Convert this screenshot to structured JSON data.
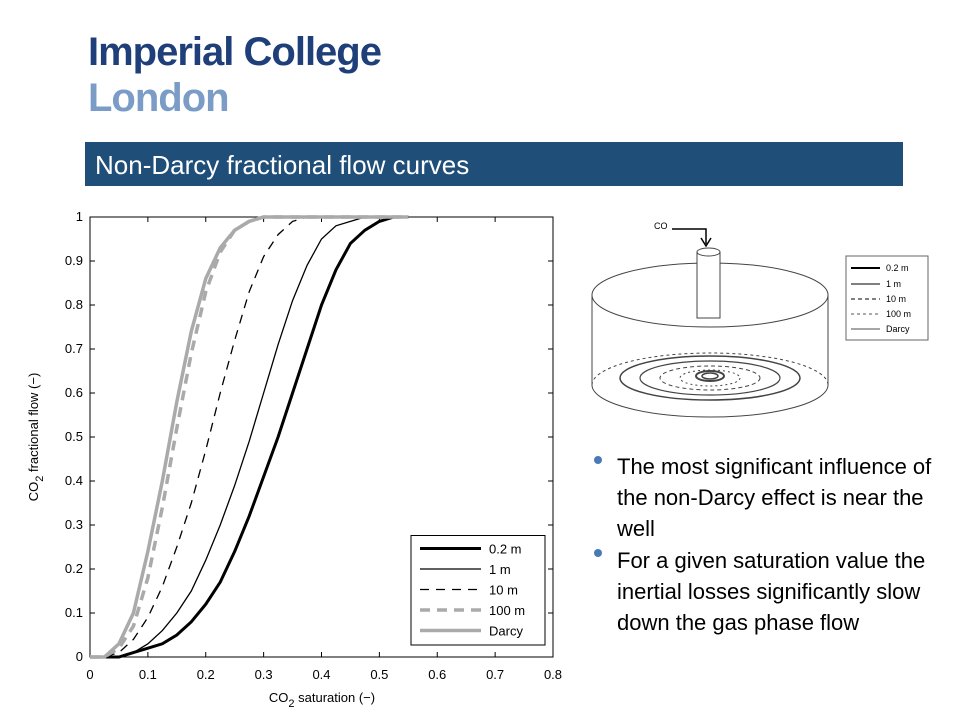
{
  "header": {
    "logo_line1": "Imperial College",
    "logo_line2": "London",
    "title": "Non-Darcy fractional flow curves"
  },
  "chart_data": {
    "type": "line",
    "xlabel": [
      "CO",
      "2",
      " saturation (−)"
    ],
    "ylabel": [
      "CO",
      "2",
      " fractional flow (−)"
    ],
    "x": [
      0,
      0.025,
      0.05,
      0.075,
      0.1,
      0.125,
      0.15,
      0.175,
      0.2,
      0.225,
      0.25,
      0.275,
      0.3,
      0.325,
      0.35,
      0.375,
      0.4,
      0.425,
      0.45,
      0.475,
      0.5,
      0.525,
      0.55
    ],
    "series": [
      {
        "name": "0.2 m",
        "color": "#000000",
        "linestyle": "solid",
        "linewidth": 3,
        "values": [
          0,
          0,
          0,
          0.01,
          0.02,
          0.03,
          0.05,
          0.08,
          0.12,
          0.17,
          0.24,
          0.32,
          0.41,
          0.5,
          0.6,
          0.7,
          0.8,
          0.88,
          0.94,
          0.97,
          0.99,
          1,
          1
        ]
      },
      {
        "name": "1 m",
        "color": "#000000",
        "linestyle": "solid",
        "linewidth": 1.3,
        "values": [
          0,
          0,
          0,
          0.01,
          0.03,
          0.06,
          0.1,
          0.15,
          0.22,
          0.3,
          0.39,
          0.49,
          0.6,
          0.71,
          0.81,
          0.89,
          0.95,
          0.98,
          0.99,
          1,
          1,
          1,
          1
        ]
      },
      {
        "name": "10 m",
        "color": "#000000",
        "linestyle": "dashed",
        "linewidth": 1.3,
        "values": [
          0,
          0,
          0.01,
          0.04,
          0.09,
          0.16,
          0.25,
          0.35,
          0.47,
          0.6,
          0.72,
          0.83,
          0.91,
          0.96,
          0.99,
          1,
          1,
          1,
          1,
          1,
          1,
          1,
          1
        ]
      },
      {
        "name": "100 m",
        "color": "#aaaaaa",
        "linestyle": "dashed",
        "linewidth": 3.5,
        "values": [
          0,
          0,
          0.02,
          0.07,
          0.18,
          0.34,
          0.52,
          0.69,
          0.83,
          0.92,
          0.97,
          0.99,
          1,
          1,
          1,
          1,
          1,
          1,
          1,
          1,
          1,
          1,
          1
        ]
      },
      {
        "name": "Darcy",
        "color": "#aaaaaa",
        "linestyle": "solid",
        "linewidth": 3.5,
        "values": [
          0,
          0,
          0.03,
          0.1,
          0.24,
          0.4,
          0.58,
          0.74,
          0.86,
          0.93,
          0.97,
          0.99,
          1,
          1,
          1,
          1,
          1,
          1,
          1,
          1,
          1,
          1,
          1
        ]
      }
    ],
    "xlim": [
      0,
      0.8
    ],
    "xticks": [
      0,
      0.1,
      0.2,
      0.3,
      0.4,
      0.5,
      0.6,
      0.7,
      0.8
    ],
    "ylim": [
      0,
      1
    ],
    "yticks": [
      0,
      0.1,
      0.2,
      0.3,
      0.4,
      0.5,
      0.6,
      0.7,
      0.8,
      0.9,
      1
    ],
    "legend": "lower right"
  },
  "diagram": {
    "inlet_label": "CO",
    "legend": [
      "0.2 m",
      "1 m",
      "10 m",
      "100 m",
      "Darcy"
    ]
  },
  "bullets": [
    "The most significant influence of the non-Darcy effect is near the well",
    "For a given saturation value the inertial losses significantly slow down the gas phase flow"
  ]
}
